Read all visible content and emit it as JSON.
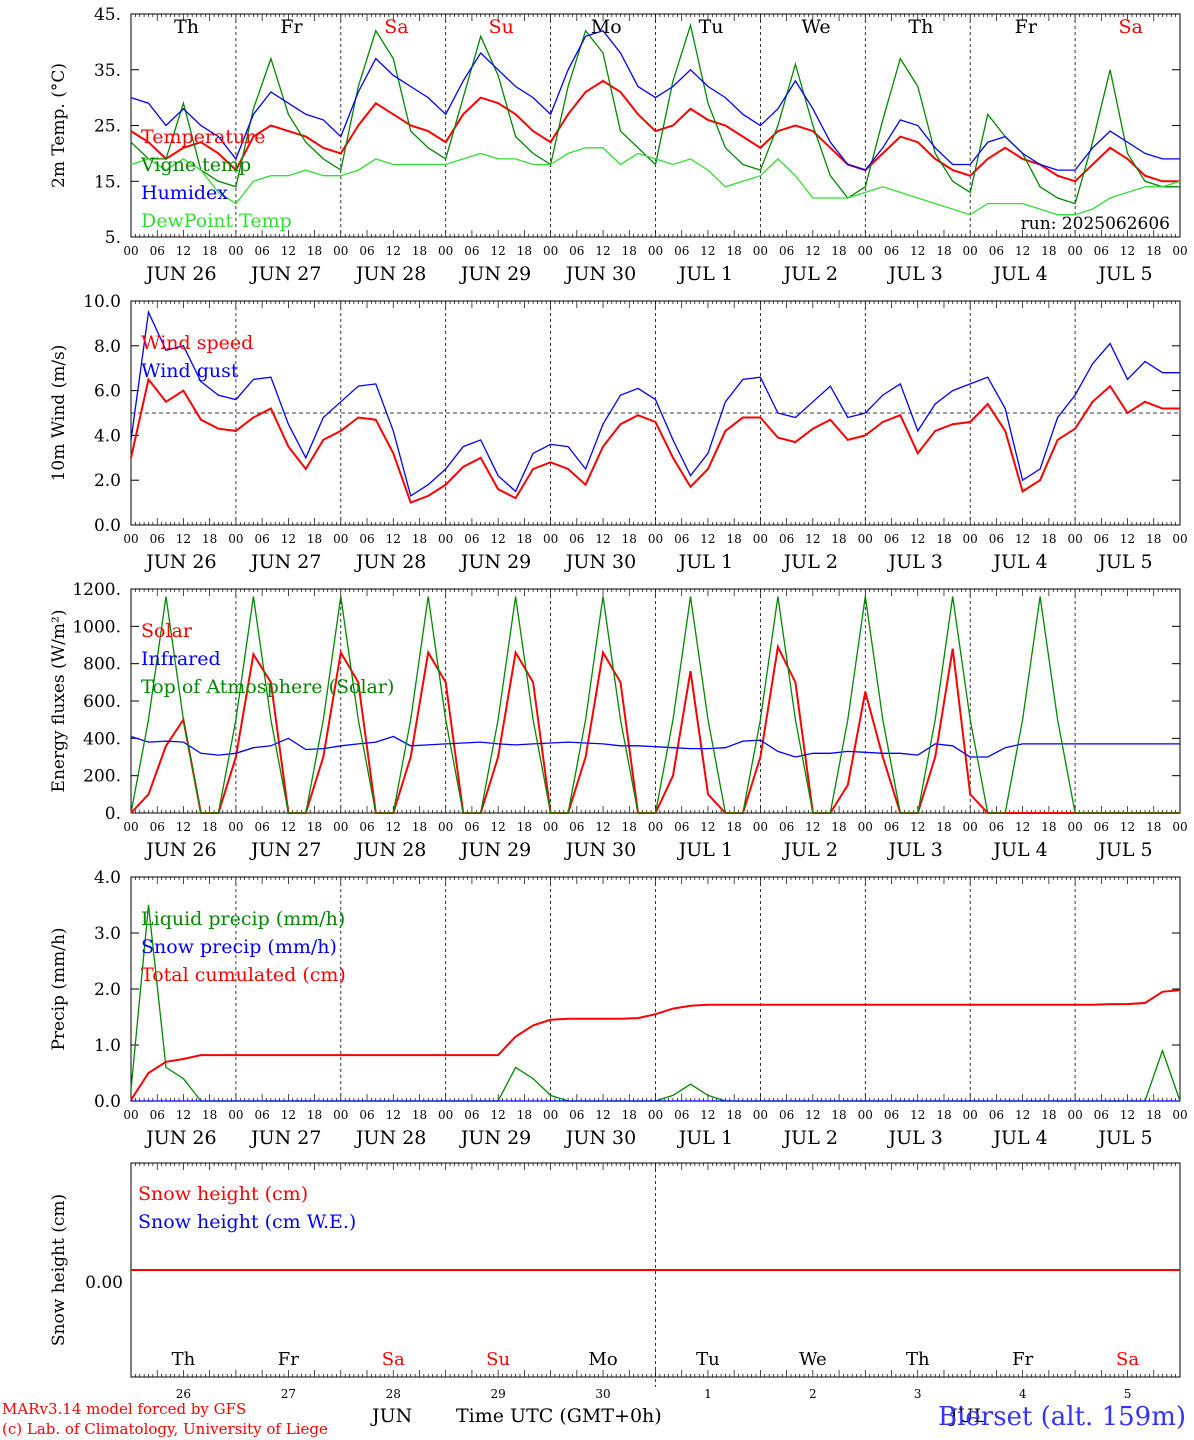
{
  "colors": {
    "red": "#ff0000",
    "green": "#008800",
    "lightgreen": "#33dd33",
    "blue": "#0000ff",
    "grey": "#000000"
  },
  "days": {
    "weekday_top": [
      "Th",
      "Fr",
      "Sa",
      "Su",
      "Mo",
      "Tu",
      "We",
      "Th",
      "Fr",
      "Sa"
    ],
    "weekend_flags": [
      false,
      false,
      true,
      true,
      false,
      false,
      false,
      false,
      false,
      true
    ],
    "date_labels": [
      "JUN 26",
      "JUN 27",
      "JUN 28",
      "JUN 29",
      "JUN 30",
      "JUL  1",
      "JUL  2",
      "JUL  3",
      "JUL  4",
      "JUL  5"
    ],
    "hour_ticks": [
      "00",
      "06",
      "12",
      "18"
    ],
    "day_numbers": [
      "26",
      "27",
      "28",
      "29",
      "30",
      "1",
      "2",
      "3",
      "4",
      "5"
    ],
    "month_labels": [
      "JUN",
      "JUL"
    ]
  },
  "footer": {
    "credit_line1": "MARv3.14 model forced by GFS",
    "credit_line2": "(c) Lab. of Climatology, University of Liege",
    "axis_title": "Time UTC (GMT+0h)",
    "station": "Bierset (alt. 159m)"
  },
  "chart_data": [
    {
      "type": "line",
      "title": "",
      "ylabel": "2m Temp. (°C)",
      "ylim": [
        5,
        45
      ],
      "yticks": [
        "5.",
        "15.",
        "25.",
        "35.",
        "45."
      ],
      "annotation": "run: 2025062606",
      "x": "hours since 00 UTC JUN 26, every 6h, 0..240",
      "series": [
        {
          "name": "Temperature",
          "color": "red",
          "values": [
            24,
            22,
            19,
            21,
            22,
            20,
            17,
            23,
            25,
            24,
            23,
            21,
            20,
            25,
            29,
            27,
            25,
            24,
            22,
            27,
            30,
            29,
            27,
            24,
            22,
            27,
            31,
            33,
            31,
            27,
            24,
            25,
            28,
            26,
            25,
            23,
            21,
            24,
            25,
            24,
            21,
            18,
            17,
            20,
            23,
            22,
            19,
            17,
            16,
            19,
            21,
            19,
            18,
            16,
            15,
            18,
            21,
            19,
            16,
            15,
            15
          ]
        },
        {
          "name": "Vigne temp",
          "color": "green",
          "values": [
            22,
            19,
            19,
            29,
            17,
            15,
            14,
            28,
            37,
            27,
            22,
            19,
            17,
            32,
            42,
            37,
            24,
            21,
            19,
            30,
            41,
            34,
            23,
            20,
            18,
            32,
            42,
            38,
            24,
            21,
            18,
            33,
            43,
            29,
            21,
            18,
            17,
            25,
            36,
            25,
            16,
            12,
            14,
            26,
            37,
            32,
            20,
            15,
            13,
            27,
            23,
            20,
            14,
            12,
            11,
            22,
            35,
            20,
            15,
            14,
            14
          ]
        },
        {
          "name": "Humidex",
          "color": "blue",
          "values": [
            30,
            29,
            25,
            28,
            25,
            23,
            19,
            27,
            31,
            29,
            27,
            26,
            23,
            31,
            37,
            34,
            32,
            30,
            27,
            33,
            38,
            35,
            32,
            30,
            27,
            35,
            41,
            42,
            38,
            32,
            30,
            32,
            35,
            32,
            30,
            27,
            25,
            28,
            33,
            28,
            22,
            18,
            17,
            21,
            26,
            25,
            21,
            18,
            18,
            22,
            23,
            20,
            18,
            17,
            17,
            21,
            24,
            22,
            20,
            19,
            19
          ]
        },
        {
          "name": "DewPoint Temp",
          "color": "lightgreen",
          "values": [
            18,
            19,
            17,
            19,
            17,
            13,
            11,
            15,
            16,
            16,
            17,
            16,
            16,
            17,
            19,
            18,
            18,
            18,
            18,
            19,
            20,
            19,
            19,
            18,
            18,
            20,
            21,
            21,
            18,
            20,
            19,
            18,
            19,
            17,
            14,
            15,
            16,
            19,
            16,
            12,
            12,
            12,
            13,
            14,
            13,
            12,
            11,
            10,
            9,
            11,
            11,
            11,
            10,
            9,
            9,
            10,
            12,
            13,
            14,
            14,
            15
          ]
        }
      ],
      "legend": "top-left"
    },
    {
      "type": "line",
      "title": "",
      "ylabel": "10m Wind (m/s)",
      "ylim": [
        0,
        10
      ],
      "yticks": [
        "0.0",
        "2.0",
        "4.0",
        "6.0",
        "8.0",
        "10.0"
      ],
      "reference_line": 5,
      "x": "hours since 00 UTC JUN 26, every 6h, 0..240",
      "series": [
        {
          "name": "Wind speed",
          "color": "red",
          "values": [
            3.0,
            6.5,
            5.5,
            6.0,
            4.7,
            4.3,
            4.2,
            4.8,
            5.2,
            3.5,
            2.5,
            3.8,
            4.2,
            4.8,
            4.7,
            3.2,
            1.0,
            1.3,
            1.8,
            2.6,
            3.0,
            1.6,
            1.2,
            2.5,
            2.8,
            2.5,
            1.8,
            3.5,
            4.5,
            4.9,
            4.6,
            3.0,
            1.7,
            2.5,
            4.2,
            4.8,
            4.8,
            3.9,
            3.7,
            4.3,
            4.7,
            3.8,
            4.0,
            4.6,
            4.9,
            3.2,
            4.2,
            4.5,
            4.6,
            5.4,
            4.2,
            1.5,
            2.0,
            3.8,
            4.3,
            5.5,
            6.2,
            5.0,
            5.5,
            5.2,
            5.2
          ]
        },
        {
          "name": "Wind gust",
          "color": "blue",
          "values": [
            3.8,
            9.5,
            7.8,
            8.0,
            6.4,
            5.8,
            5.6,
            6.5,
            6.6,
            4.5,
            3.0,
            4.8,
            5.5,
            6.2,
            6.3,
            4.2,
            1.3,
            1.8,
            2.5,
            3.5,
            3.8,
            2.2,
            1.5,
            3.2,
            3.6,
            3.5,
            2.5,
            4.5,
            5.8,
            6.1,
            5.6,
            3.8,
            2.2,
            3.2,
            5.5,
            6.5,
            6.6,
            5.0,
            4.8,
            5.5,
            6.2,
            4.8,
            5.0,
            5.8,
            6.3,
            4.2,
            5.4,
            6.0,
            6.3,
            6.6,
            5.2,
            2.0,
            2.5,
            4.8,
            5.8,
            7.2,
            8.1,
            6.5,
            7.3,
            6.8,
            6.8
          ]
        }
      ],
      "legend": "top-left"
    },
    {
      "type": "line",
      "title": "",
      "ylabel": "Energy fluxes (W/m²)",
      "ylim": [
        0,
        1200
      ],
      "yticks": [
        "0.",
        "200.",
        "400.",
        "600.",
        "800.",
        "1000.",
        "1200."
      ],
      "x": "hours since 00 UTC JUN 26, every 6h, 0..240",
      "series": [
        {
          "name": "Solar",
          "color": "red",
          "values": [
            0,
            100,
            360,
            500,
            0,
            0,
            300,
            850,
            700,
            0,
            0,
            300,
            860,
            700,
            0,
            0,
            300,
            860,
            700,
            0,
            0,
            300,
            860,
            700,
            0,
            0,
            300,
            860,
            700,
            0,
            0,
            200,
            760,
            100,
            0,
            0,
            300,
            890,
            700,
            0,
            0,
            150,
            650,
            300,
            0,
            0,
            300,
            880,
            100,
            0,
            0,
            0,
            0,
            0,
            0,
            0,
            0,
            0,
            0,
            0,
            0
          ]
        },
        {
          "name": "Infrared",
          "color": "blue",
          "values": [
            410,
            380,
            385,
            380,
            320,
            310,
            320,
            350,
            360,
            400,
            340,
            345,
            360,
            370,
            380,
            410,
            360,
            365,
            370,
            375,
            380,
            370,
            365,
            370,
            375,
            380,
            375,
            370,
            360,
            360,
            355,
            350,
            345,
            345,
            350,
            385,
            390,
            330,
            300,
            320,
            320,
            330,
            325,
            320,
            320,
            310,
            370,
            360,
            300,
            300,
            350,
            370,
            370,
            370,
            370,
            370,
            370,
            370,
            370,
            370,
            370
          ]
        },
        {
          "name": "Top of Atmosphere (Solar)",
          "color": "green",
          "values": [
            0,
            500,
            1160,
            500,
            0,
            0,
            500,
            1160,
            500,
            0,
            0,
            500,
            1160,
            500,
            0,
            0,
            500,
            1160,
            500,
            0,
            0,
            500,
            1160,
            500,
            0,
            0,
            500,
            1160,
            500,
            0,
            0,
            500,
            1160,
            500,
            0,
            0,
            500,
            1160,
            500,
            0,
            0,
            500,
            1160,
            500,
            0,
            0,
            500,
            1160,
            500,
            0,
            0,
            500,
            1160,
            500,
            0,
            0,
            0,
            0,
            0,
            0,
            0
          ]
        }
      ],
      "legend": "top-left"
    },
    {
      "type": "line",
      "title": "",
      "ylabel": "Precip (mm/h)",
      "ylim": [
        0,
        4
      ],
      "yticks": [
        "0.0",
        "1.0",
        "2.0",
        "3.0",
        "4.0"
      ],
      "x": "hours since 00 UTC JUN 26, every 6h, 0..240",
      "series": [
        {
          "name": "Liquid precip (mm/h)",
          "color": "green",
          "values": [
            0.2,
            3.5,
            0.6,
            0.4,
            0,
            0,
            0,
            0,
            0,
            0,
            0,
            0,
            0,
            0,
            0,
            0,
            0,
            0,
            0,
            0,
            0,
            0,
            0.6,
            0.4,
            0.1,
            0,
            0,
            0,
            0,
            0,
            0,
            0.1,
            0.3,
            0.1,
            0,
            0,
            0,
            0,
            0,
            0,
            0,
            0,
            0,
            0,
            0,
            0,
            0,
            0,
            0,
            0,
            0,
            0,
            0,
            0,
            0,
            0,
            0,
            0,
            0,
            0.9,
            0
          ]
        },
        {
          "name": "Snow precip (mm/h)",
          "color": "blue",
          "values": [
            0,
            0,
            0,
            0,
            0,
            0,
            0,
            0,
            0,
            0,
            0,
            0,
            0,
            0,
            0,
            0,
            0,
            0,
            0,
            0,
            0,
            0,
            0,
            0,
            0,
            0,
            0,
            0,
            0,
            0,
            0,
            0,
            0,
            0,
            0,
            0,
            0,
            0,
            0,
            0,
            0,
            0,
            0,
            0,
            0,
            0,
            0,
            0,
            0,
            0,
            0,
            0,
            0,
            0,
            0,
            0,
            0,
            0,
            0,
            0,
            0
          ]
        },
        {
          "name": "Total cumulated (cm)",
          "color": "red",
          "values": [
            0.02,
            0.5,
            0.7,
            0.75,
            0.82,
            0.82,
            0.82,
            0.82,
            0.82,
            0.82,
            0.82,
            0.82,
            0.82,
            0.82,
            0.82,
            0.82,
            0.82,
            0.82,
            0.82,
            0.82,
            0.82,
            0.82,
            1.15,
            1.35,
            1.45,
            1.47,
            1.47,
            1.47,
            1.47,
            1.48,
            1.55,
            1.65,
            1.7,
            1.72,
            1.72,
            1.72,
            1.72,
            1.72,
            1.72,
            1.72,
            1.72,
            1.72,
            1.72,
            1.72,
            1.72,
            1.72,
            1.72,
            1.72,
            1.72,
            1.72,
            1.72,
            1.72,
            1.72,
            1.72,
            1.72,
            1.72,
            1.73,
            1.73,
            1.75,
            1.95,
            1.98
          ]
        }
      ],
      "legend": "top-left"
    },
    {
      "type": "line",
      "title": "",
      "ylabel": "Snow height (cm)",
      "ylim": [
        -1,
        1
      ],
      "yticks": [
        "0.00"
      ],
      "x": "hours since 00 UTC JUN 26, every 6h, 0..240",
      "series": [
        {
          "name": "Snow height (cm)",
          "color": "red",
          "values": [
            0,
            0,
            0,
            0,
            0,
            0,
            0,
            0,
            0,
            0,
            0,
            0,
            0,
            0,
            0,
            0,
            0,
            0,
            0,
            0,
            0,
            0,
            0,
            0,
            0,
            0,
            0,
            0,
            0,
            0,
            0,
            0,
            0,
            0,
            0,
            0,
            0,
            0,
            0,
            0,
            0,
            0,
            0,
            0,
            0,
            0,
            0,
            0,
            0,
            0,
            0,
            0,
            0,
            0,
            0,
            0,
            0,
            0,
            0,
            0,
            0
          ]
        },
        {
          "name": "Snow height (cm W.E.)",
          "color": "blue",
          "values": []
        }
      ],
      "legend": "top-left"
    }
  ]
}
